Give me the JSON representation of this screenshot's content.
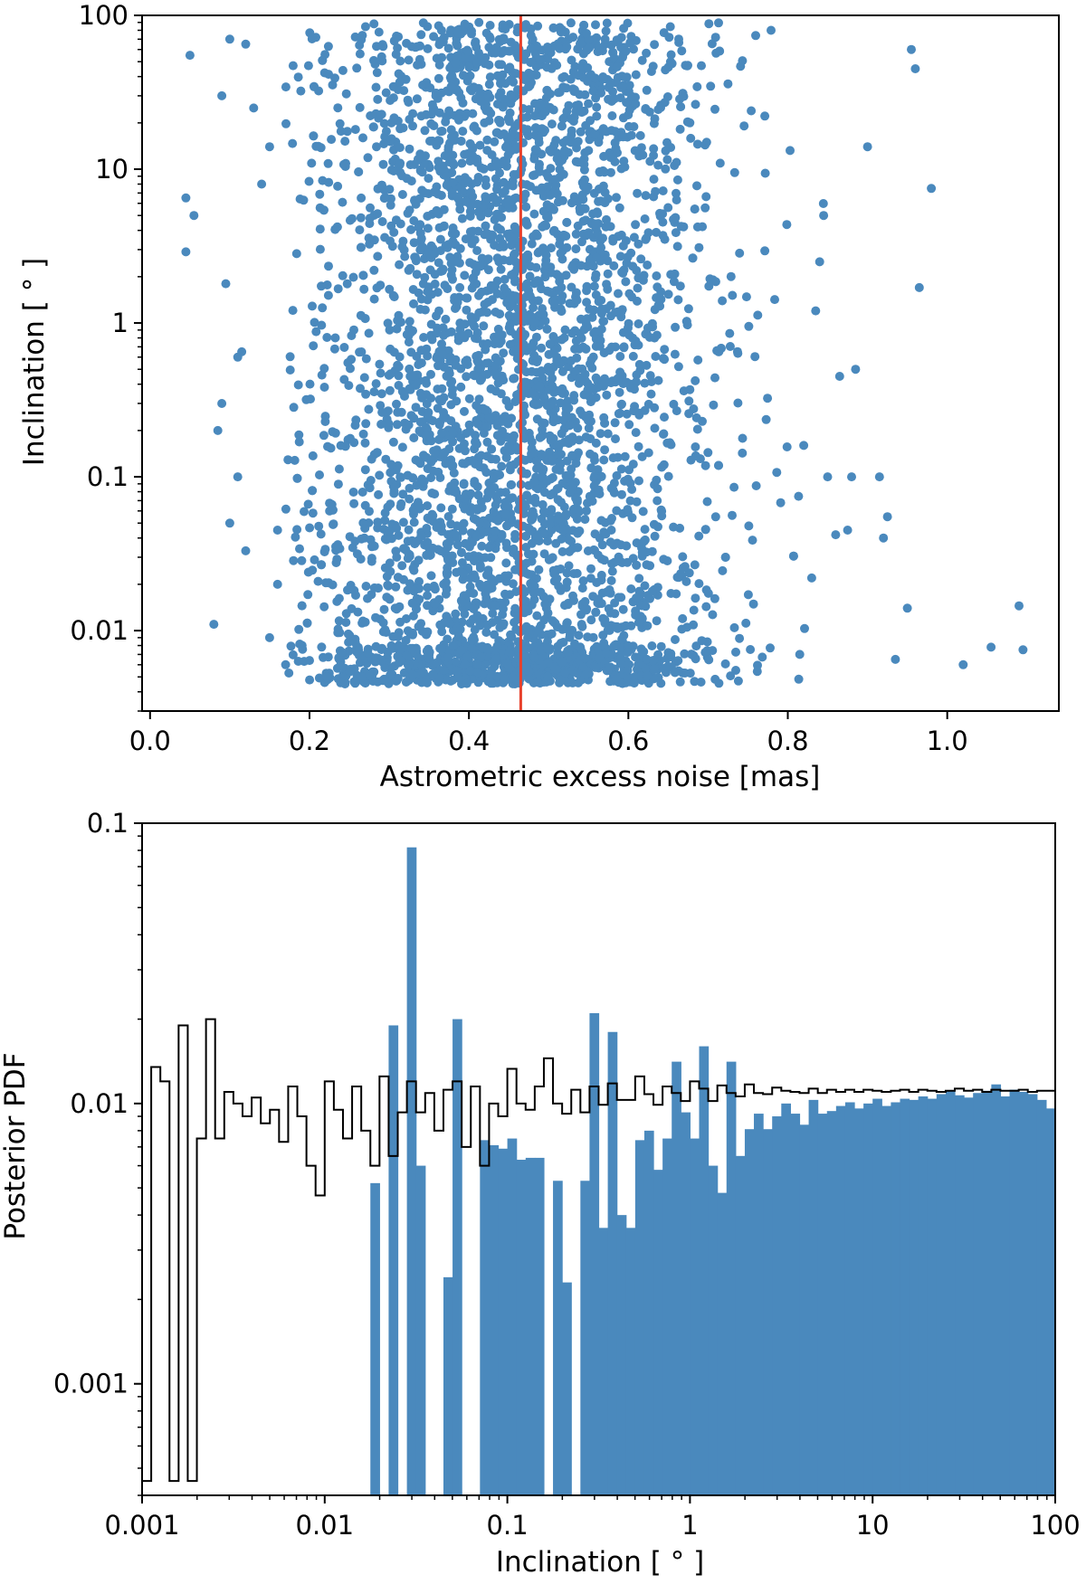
{
  "chart_data": [
    {
      "type": "scatter",
      "xlabel": "Astrometric excess noise [mas]",
      "ylabel": "Inclination [$^\\circ$]",
      "ylabel_text": "Inclination [ ° ]",
      "xlim": [
        -0.01,
        1.14
      ],
      "ylim": [
        0.003,
        100
      ],
      "xscale": "linear",
      "yscale": "log",
      "xticks": [
        0.0,
        0.2,
        0.4,
        0.6,
        0.8,
        1.0
      ],
      "xtick_labels": [
        "0.0",
        "0.2",
        "0.4",
        "0.6",
        "0.8",
        "1.0"
      ],
      "yticks": [
        0.01,
        0.1,
        1,
        10,
        100
      ],
      "ytick_labels": [
        "0.01",
        "0.1",
        "1",
        "10",
        "100"
      ],
      "grid": false,
      "point_color": "#4a89bd",
      "vertical_line": {
        "x": 0.465,
        "color": "#e8412c"
      },
      "distribution": {
        "description": "dense cloud of several thousand points",
        "x_range": [
          0.04,
          1.1
        ],
        "x_core": [
          0.25,
          0.75
        ],
        "y_range": [
          0.0045,
          90
        ]
      },
      "series": [
        {
          "x": [
            0.05,
            0.045,
            0.055,
            0.045,
            0.09,
            0.11,
            0.1,
            0.12,
            0.08,
            0.09,
            0.1,
            0.12,
            0.13,
            0.15,
            0.14,
            0.095,
            0.115,
            0.11,
            0.085,
            0.16,
            0.16,
            0.15,
            0.17,
            1.09,
            1.095,
            1.055,
            1.02,
            0.98,
            0.965,
            0.955,
            0.96,
            0.95,
            0.935,
            0.925,
            0.92,
            0.915,
            0.9,
            0.885,
            0.88,
            0.875,
            0.865,
            0.86,
            0.85,
            0.845,
            0.84,
            0.835,
            0.83,
            0.82,
            0.815
          ],
          "y": [
            55,
            6.5,
            5,
            2.9,
            0.3,
            0.1,
            0.05,
            0.033,
            0.011,
            30,
            70,
            65,
            25,
            14,
            8,
            1.8,
            0.65,
            0.6,
            0.2,
            0.045,
            0.02,
            0.009,
            0.006,
            0.0145,
            0.0075,
            0.0078,
            0.006,
            7.5,
            1.7,
            60,
            45,
            0.014,
            0.0065,
            0.055,
            0.04,
            0.1,
            14,
            0.5,
            0.1,
            0.045,
            0.45,
            0.042,
            0.1,
            5,
            2.5,
            1.2,
            0.022,
            0.16,
            0.007
          ]
        }
      ]
    },
    {
      "type": "bar",
      "subtype": "histogram-with-step-outline",
      "xlabel": "Inclination [$^\\circ$]",
      "xlabel_text": "Inclination [ ° ]",
      "ylabel": "Posterior PDF",
      "xlim": [
        0.001,
        100
      ],
      "ylim": [
        0.0004,
        0.1
      ],
      "xscale": "log",
      "yscale": "log",
      "xticks": [
        0.001,
        0.01,
        0.1,
        1,
        10,
        100
      ],
      "xtick_labels": [
        "0.001",
        "0.01",
        "0.1",
        "1",
        "10",
        "100"
      ],
      "yticks": [
        0.001,
        0.01,
        0.1
      ],
      "ytick_labels": [
        "0.001",
        "0.01",
        "0.1"
      ],
      "grid": false,
      "bins_log10": {
        "start": -3,
        "end": 2,
        "count": 100
      },
      "series": [
        {
          "color": "#4a89bd",
          "style": "filled",
          "values": [
            0,
            0,
            0,
            0,
            0,
            0,
            0,
            0,
            0,
            0,
            0,
            0,
            0,
            0,
            0,
            0,
            0,
            0,
            0,
            0,
            0,
            0,
            0,
            0,
            0,
            0.0052,
            0,
            0.019,
            0,
            0.082,
            0.006,
            0,
            0,
            0.0024,
            0.02,
            0,
            0,
            0.0074,
            0.0071,
            0.0069,
            0.0075,
            0.0063,
            0.0064,
            0.0064,
            0,
            0.0053,
            0.0023,
            0,
            0.0053,
            0.021,
            0.0036,
            0.018,
            0.004,
            0.0036,
            0.0074,
            0.008,
            0.0058,
            0.0075,
            0.0141,
            0.0093,
            0.0075,
            0.016,
            0.006,
            0.0048,
            0.0141,
            0.0065,
            0.0081,
            0.0092,
            0.0081,
            0.009,
            0.01,
            0.0092,
            0.0084,
            0.0103,
            0.0092,
            0.0094,
            0.0098,
            0.0101,
            0.0096,
            0.01,
            0.0104,
            0.0098,
            0.0101,
            0.0104,
            0.0103,
            0.0106,
            0.0104,
            0.0108,
            0.0111,
            0.0107,
            0.0105,
            0.0109,
            0.0111,
            0.0117,
            0.0106,
            0.0112,
            0.011,
            0.0108,
            0.0103,
            0.0096
          ]
        },
        {
          "color": "#000000",
          "style": "step",
          "values": [
            0.00045,
            0.0135,
            0.012,
            0.00045,
            0.019,
            0.00045,
            0.0075,
            0.02,
            0.0075,
            0.011,
            0.01,
            0.009,
            0.0105,
            0.0085,
            0.0095,
            0.0073,
            0.0115,
            0.009,
            0.006,
            0.0047,
            0.012,
            0.0095,
            0.0075,
            0.0115,
            0.008,
            0.006,
            0.0125,
            0.0065,
            0.0093,
            0.012,
            0.0093,
            0.0109,
            0.008,
            0.0112,
            0.012,
            0.007,
            0.0115,
            0.006,
            0.01,
            0.009,
            0.0133,
            0.01,
            0.0095,
            0.0115,
            0.0145,
            0.01,
            0.0092,
            0.0112,
            0.0093,
            0.0115,
            0.0099,
            0.0118,
            0.0103,
            0.0103,
            0.0125,
            0.0108,
            0.0099,
            0.0115,
            0.0109,
            0.0102,
            0.012,
            0.0113,
            0.0102,
            0.0116,
            0.0109,
            0.0106,
            0.0117,
            0.0109,
            0.0108,
            0.0114,
            0.0111,
            0.011,
            0.0109,
            0.0113,
            0.0109,
            0.0112,
            0.011,
            0.0112,
            0.011,
            0.0112,
            0.0111,
            0.011,
            0.0111,
            0.0112,
            0.011,
            0.0112,
            0.0111,
            0.011,
            0.0111,
            0.0113,
            0.0111,
            0.0112,
            0.011,
            0.0112,
            0.0111,
            0.0111,
            0.0112,
            0.011,
            0.0111,
            0.0111
          ]
        }
      ]
    }
  ]
}
